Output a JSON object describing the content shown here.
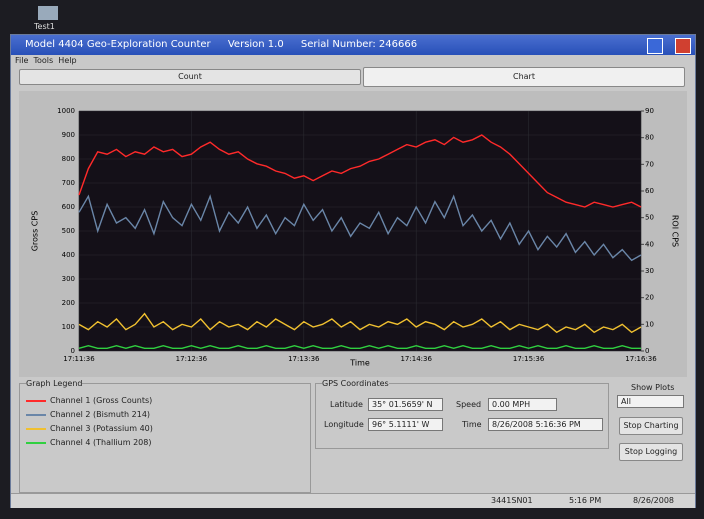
{
  "desktop": {
    "icon_label": "Test1"
  },
  "window": {
    "title": "Model 4404 Geo-Exploration Counter",
    "version": "Version 1.0",
    "serial": "Serial Number: 246666"
  },
  "menu": [
    "File",
    "Tools",
    "Help"
  ],
  "tabs": [
    "Count",
    "Chart"
  ],
  "chart_data": {
    "type": "line",
    "x_label": "Time",
    "y_label": "Gross CPS",
    "y2_label": "ROI CPS",
    "x": [
      0,
      5,
      10,
      15,
      20,
      25,
      30,
      35,
      40,
      45,
      50,
      55,
      60,
      65,
      70,
      75,
      80,
      85,
      90,
      95,
      100,
      105,
      110,
      115,
      120,
      125,
      130,
      135,
      140,
      145,
      150,
      155,
      160,
      165,
      170,
      175,
      180,
      185,
      190,
      195,
      200,
      205,
      210,
      215,
      220,
      225,
      230,
      235,
      240,
      245,
      250,
      255,
      260,
      265,
      270,
      275,
      280,
      285,
      290,
      295,
      300
    ],
    "xlim": [
      0,
      300
    ],
    "xticks": [
      {
        "value": 0,
        "label": "17:11:36"
      },
      {
        "value": 60,
        "label": "17:12:36"
      },
      {
        "value": 120,
        "label": "17:13:36"
      },
      {
        "value": 180,
        "label": "17:14:36"
      },
      {
        "value": 240,
        "label": "17:15:36"
      },
      {
        "value": 300,
        "label": "17:16:36"
      }
    ],
    "ylim": [
      0,
      1000
    ],
    "yticks": [
      0,
      100,
      200,
      300,
      400,
      500,
      600,
      700,
      800,
      900,
      1000
    ],
    "y2lim": [
      0,
      90
    ],
    "y2ticks": [
      0,
      10,
      20,
      30,
      40,
      50,
      60,
      70,
      80,
      90
    ],
    "grid": true,
    "series": [
      {
        "name": "Channel 1 (Gross Counts)",
        "color": "#ff2a2a",
        "values": [
          650,
          760,
          830,
          820,
          840,
          810,
          830,
          820,
          850,
          830,
          840,
          810,
          820,
          850,
          870,
          840,
          820,
          830,
          800,
          780,
          770,
          750,
          740,
          720,
          730,
          710,
          730,
          750,
          740,
          760,
          770,
          790,
          800,
          820,
          840,
          860,
          850,
          870,
          880,
          860,
          890,
          870,
          880,
          900,
          870,
          850,
          820,
          780,
          740,
          700,
          660,
          640,
          620,
          610,
          600,
          620,
          610,
          600,
          610,
          620,
          600
        ]
      },
      {
        "name": "Channel 2 (Bismuth 214)",
        "color": "#6a86a8",
        "axis": "y2",
        "values": [
          52,
          58,
          45,
          55,
          48,
          50,
          46,
          53,
          44,
          56,
          50,
          47,
          55,
          49,
          58,
          45,
          52,
          48,
          54,
          46,
          51,
          44,
          50,
          47,
          55,
          49,
          53,
          45,
          50,
          43,
          48,
          46,
          52,
          44,
          50,
          47,
          54,
          48,
          56,
          50,
          58,
          47,
          51,
          45,
          49,
          42,
          48,
          40,
          45,
          38,
          43,
          39,
          44,
          37,
          41,
          36,
          40,
          35,
          38,
          34,
          36
        ]
      },
      {
        "name": "Channel 3 (Potassium 40)",
        "color": "#f0c030",
        "axis": "y2",
        "values": [
          10,
          8,
          11,
          9,
          12,
          8,
          10,
          14,
          9,
          11,
          8,
          10,
          9,
          12,
          8,
          11,
          9,
          10,
          8,
          11,
          9,
          12,
          10,
          8,
          11,
          9,
          10,
          12,
          9,
          11,
          8,
          10,
          9,
          11,
          10,
          12,
          9,
          11,
          10,
          8,
          11,
          9,
          10,
          12,
          9,
          11,
          8,
          10,
          9,
          8,
          10,
          7,
          9,
          8,
          10,
          7,
          9,
          8,
          10,
          7,
          9
        ]
      },
      {
        "name": "Channel 4 (Thallium 208)",
        "color": "#30d040",
        "axis": "y2",
        "values": [
          1,
          2,
          1,
          1,
          2,
          1,
          2,
          1,
          1,
          2,
          1,
          1,
          2,
          1,
          2,
          1,
          1,
          2,
          1,
          1,
          2,
          1,
          1,
          2,
          1,
          2,
          1,
          1,
          2,
          1,
          1,
          2,
          1,
          2,
          1,
          1,
          2,
          1,
          1,
          2,
          1,
          2,
          1,
          1,
          2,
          1,
          1,
          2,
          1,
          2,
          1,
          1,
          2,
          1,
          1,
          2,
          1,
          1,
          2,
          1,
          1
        ]
      }
    ]
  },
  "legend_title": "Graph Legend",
  "gps": {
    "title": "GPS Coordinates",
    "latitude_label": "Latitude",
    "latitude": "35° 01.5659' N",
    "longitude_label": "Longitude",
    "longitude": "96° 5.1111' W",
    "speed_label": "Speed",
    "speed": "0.00 MPH",
    "time_label": "Time",
    "time": "8/26/2008 5:16:36 PM"
  },
  "controls": {
    "show_plots_label": "Show Plots",
    "show_plots": "All",
    "buttons": [
      "Stop Charting",
      "Stop Logging"
    ]
  },
  "status": [
    "3441SN01",
    "5:16 PM",
    "8/26/2008"
  ]
}
